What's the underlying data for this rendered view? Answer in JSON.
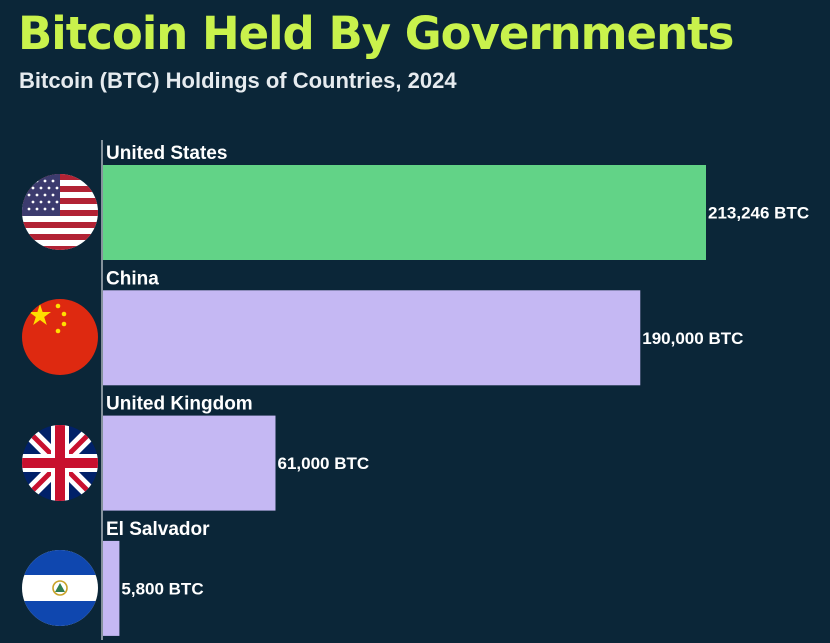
{
  "header": {
    "title": "Bitcoin Held By Governments",
    "subtitle": "Bitcoin (BTC) Holdings of Countries, 2024"
  },
  "colors": {
    "background": "#0b2638",
    "title": "#c9f24c",
    "highlight_bar": "#62d387",
    "default_bar": "#c5b8f3",
    "axis": "#ffffff"
  },
  "chart_data": {
    "type": "bar",
    "orientation": "horizontal",
    "title": "Bitcoin Held By Governments",
    "subtitle": "Bitcoin (BTC) Holdings of Countries, 2024",
    "categories": [
      "United States",
      "China",
      "United Kingdom",
      "El Salvador"
    ],
    "values": [
      213246,
      190000,
      61000,
      5800
    ],
    "value_labels": [
      "213,246 BTC",
      "190,000 BTC",
      "61,000 BTC",
      "5,800 BTC"
    ],
    "icons": [
      "usa-flag-icon",
      "china-flag-icon",
      "uk-flag-icon",
      "el-salvador-flag-icon"
    ],
    "highlight_index": 0,
    "xlim": [
      0,
      213246
    ],
    "grid": false
  }
}
